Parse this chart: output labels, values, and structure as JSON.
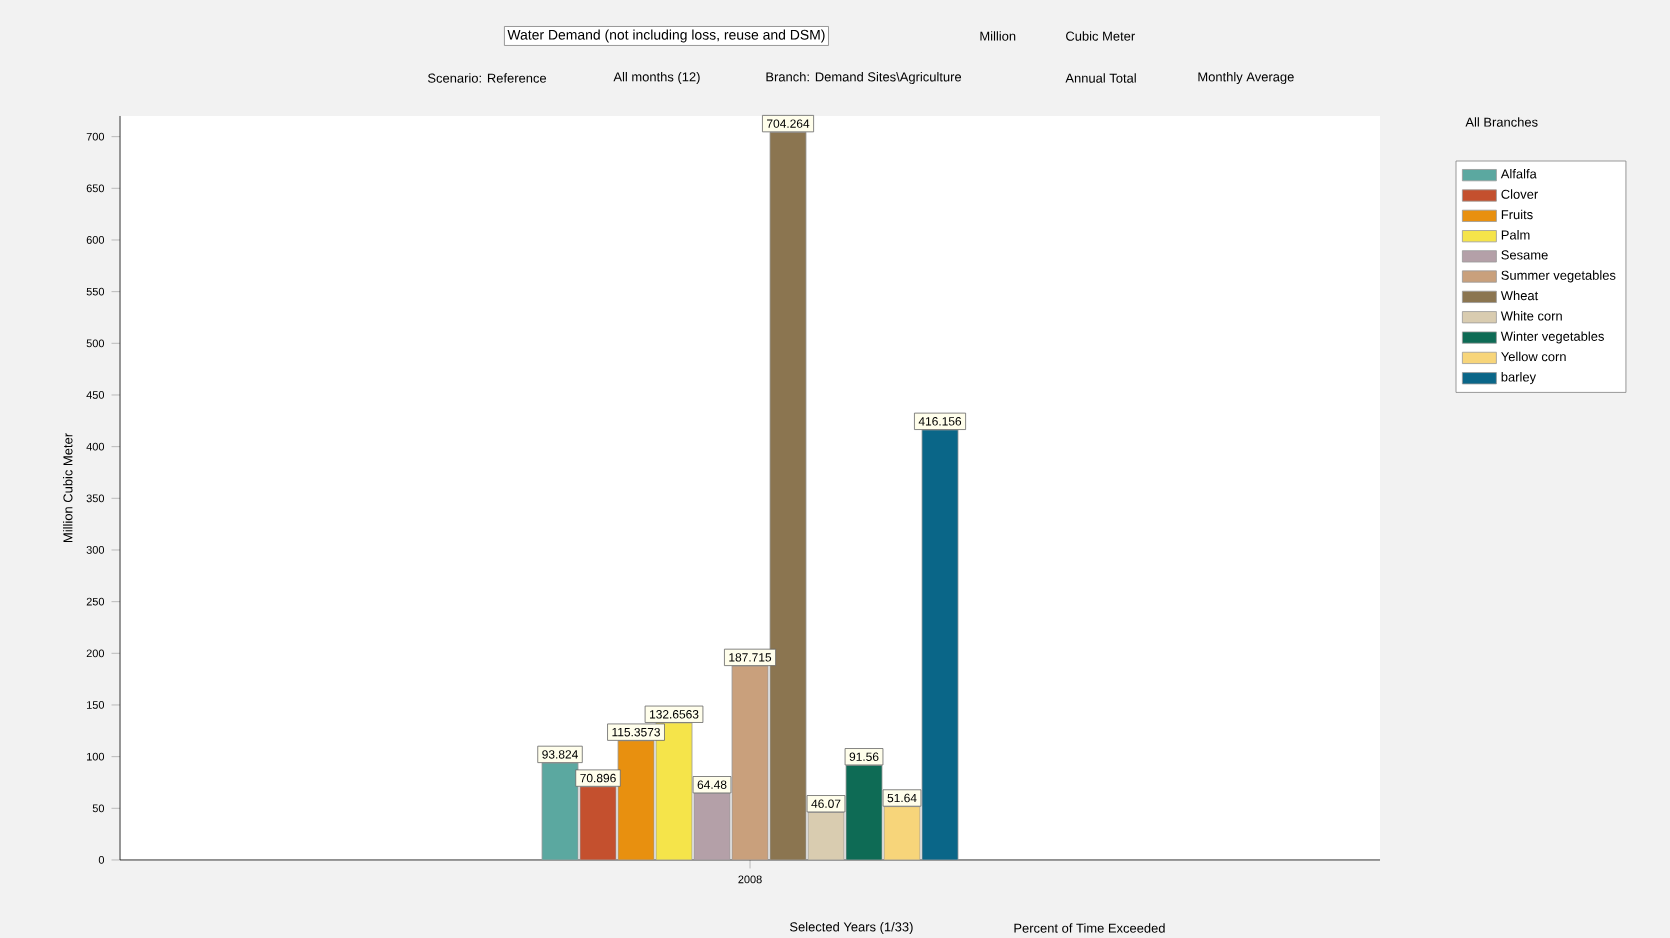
{
  "chart_data": {
    "type": "bar",
    "title": "Water Demand (not including loss, reuse and DSM)",
    "ylabel": "Million Cubic Meter",
    "categories": [
      "2008"
    ],
    "series": [
      {
        "name": "Alfalfa",
        "color": "#5ba8a0",
        "values": [
          93.824
        ],
        "value_labels": [
          "93.824"
        ]
      },
      {
        "name": "Clover",
        "color": "#c4502e",
        "values": [
          70.896
        ],
        "value_labels": [
          "70.896"
        ]
      },
      {
        "name": "Fruits",
        "color": "#e8900f",
        "values": [
          115.3573
        ],
        "value_labels": [
          "115.3573"
        ]
      },
      {
        "name": "Palm",
        "color": "#f5e44a",
        "values": [
          132.6563
        ],
        "value_labels": [
          "132.6563"
        ]
      },
      {
        "name": "Sesame",
        "color": "#b4a0a8",
        "values": [
          64.48
        ],
        "value_labels": [
          "64.48"
        ]
      },
      {
        "name": "Summer vegetables",
        "color": "#c9a07c",
        "values": [
          187.715
        ],
        "value_labels": [
          "187.715"
        ]
      },
      {
        "name": "Wheat",
        "color": "#8b7550",
        "values": [
          704.264
        ],
        "value_labels": [
          "704.264"
        ]
      },
      {
        "name": "White corn",
        "color": "#d9ccb0",
        "values": [
          46.07
        ],
        "value_labels": [
          "46.07"
        ]
      },
      {
        "name": "Winter vegetables",
        "color": "#0e6b55",
        "values": [
          91.56
        ],
        "value_labels": [
          "91.56"
        ]
      },
      {
        "name": "Yellow corn",
        "color": "#f7d57a",
        "values": [
          51.64
        ],
        "value_labels": [
          "51.64"
        ]
      },
      {
        "name": "barley",
        "color": "#0a6688",
        "values": [
          416.156
        ],
        "value_labels": [
          "416.156"
        ]
      }
    ],
    "ylim": [
      0,
      720
    ],
    "yticks": [
      0,
      50,
      100,
      150,
      200,
      250,
      300,
      350,
      400,
      450,
      500,
      550,
      600,
      650,
      700
    ],
    "grid": false,
    "legend": "right",
    "annotations": [
      "Million",
      "Cubic Meter",
      "Scenario: Reference",
      "All months (12)",
      "Branch: Demand Sites\\Agriculture",
      "Annual Total",
      "Monthly Average",
      "All Branches",
      "Selected Years (1/33)",
      "Percent of Time Exceeded"
    ]
  }
}
